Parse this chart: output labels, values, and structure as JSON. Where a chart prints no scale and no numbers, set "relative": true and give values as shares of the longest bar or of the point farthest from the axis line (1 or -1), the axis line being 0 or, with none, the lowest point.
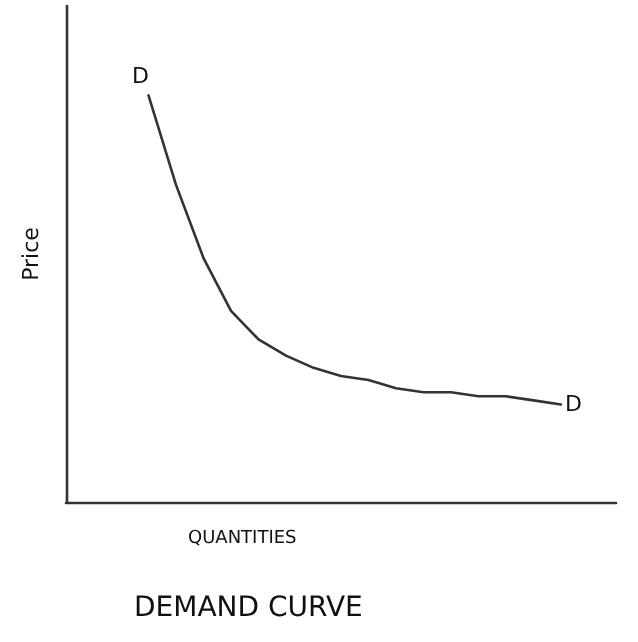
{
  "chart_data": {
    "type": "line",
    "title": "DEMAND CURVE",
    "xlabel": "QUANTITIES",
    "ylabel": "Price",
    "relative": true,
    "categories": [
      null,
      null,
      null,
      null,
      null,
      null,
      null,
      null,
      null,
      null,
      null,
      null,
      null,
      null,
      null,
      null,
      null,
      null,
      null,
      null,
      null
    ],
    "series": [
      {
        "color": "#333333",
        "values": [
          null,
          null,
          null,
          1,
          0.78,
          0.6,
          0.47,
          0.4,
          0.36,
          0.33,
          0.31,
          0.3,
          0.28,
          0.27,
          0.27,
          0.26,
          0.26,
          0.25,
          0.24,
          null,
          null
        ]
      }
    ],
    "annotations": [
      "D",
      "D"
    ],
    "marker": "none",
    "line_style": "solid",
    "grid": false
  }
}
